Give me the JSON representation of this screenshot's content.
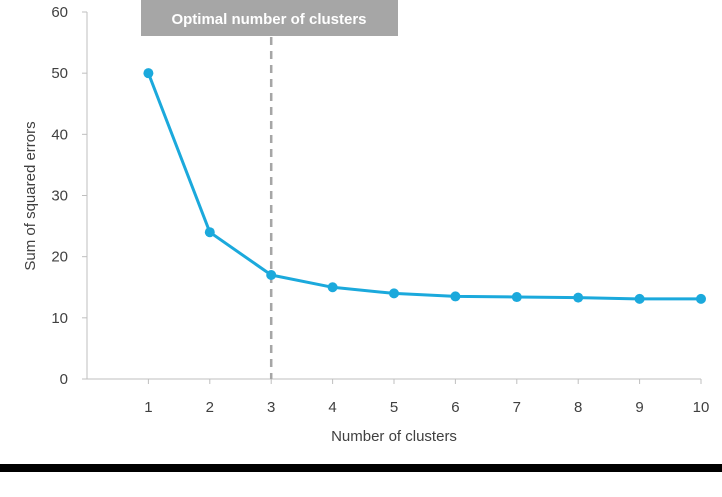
{
  "chart_data": {
    "type": "line",
    "x": [
      1,
      2,
      3,
      4,
      5,
      6,
      7,
      8,
      9,
      10
    ],
    "series": [
      {
        "values": [
          50,
          24,
          17,
          15,
          14,
          13.5,
          13.4,
          13.3,
          13.1,
          13.1
        ]
      }
    ],
    "xlabel": "Number of clusters",
    "ylabel": "Sum of squared errors",
    "xlim": [
      0,
      10
    ],
    "ylim": [
      0,
      60
    ],
    "yticks": [
      0,
      10,
      20,
      30,
      40,
      50,
      60
    ],
    "xticks": [
      1,
      2,
      3,
      4,
      5,
      6,
      7,
      8,
      9,
      10
    ],
    "grid": false,
    "annotation": {
      "text": "Optimal number of clusters",
      "x": 3,
      "style": "dashed vertical line"
    },
    "colors": {
      "line": "#1ba9dc",
      "annotation_bg": "#a6a6a6",
      "annotation_text": "#ffffff",
      "dashed_line": "#a6a6a6",
      "axis": "#bfbfbf"
    }
  }
}
